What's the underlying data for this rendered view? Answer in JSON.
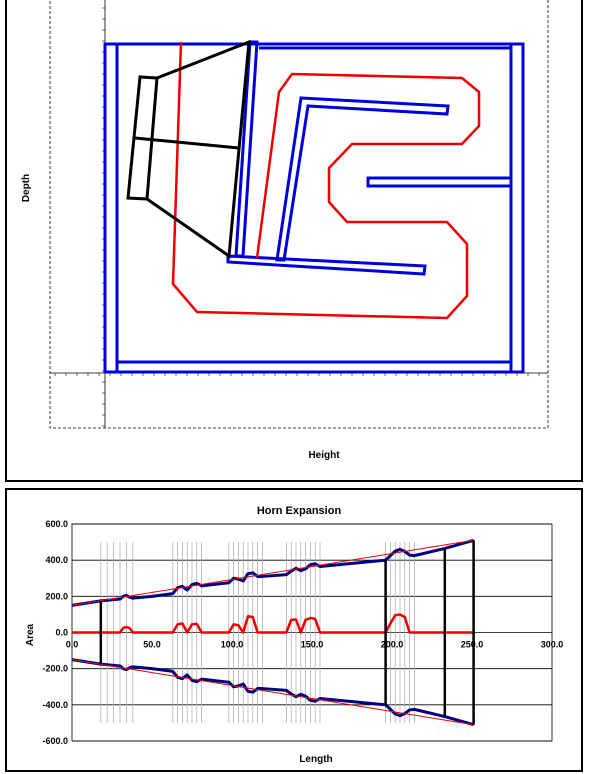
{
  "chart_data": [
    {
      "type": "line",
      "title": "",
      "xlabel": "Height",
      "ylabel": "Depth",
      "series": [
        {
          "color": "#0000cc",
          "values": []
        },
        {
          "color": "#ee0000",
          "values": []
        },
        {
          "color": "#000000",
          "values": []
        }
      ],
      "grid": false
    },
    {
      "type": "line",
      "title": "Horn Expansion",
      "xlabel": "Length",
      "ylabel": "Area",
      "xlim": [
        0,
        300
      ],
      "ylim": [
        -600,
        600
      ],
      "xticks": [
        "0.0",
        "50.0",
        "100.0",
        "150.0",
        "200.0",
        "250.0",
        "300.0"
      ],
      "yticks": [
        "600.0",
        "400.0",
        "200.0",
        "0.0",
        "-200.0",
        "-400.0",
        "-600.0"
      ],
      "grid": true,
      "series": [
        {
          "color": "#000080",
          "x": [
            0,
            18,
            30,
            32,
            34,
            36,
            38,
            50,
            63,
            66,
            69,
            72,
            75,
            78,
            81,
            98,
            101,
            104,
            107,
            110,
            113,
            116,
            119,
            134,
            137,
            140,
            143,
            146,
            149,
            152,
            155,
            196,
            199,
            202,
            205,
            208,
            211,
            214,
            233,
            251
          ],
          "y": [
            150,
            175,
            185,
            200,
            205,
            195,
            190,
            200,
            215,
            248,
            255,
            235,
            265,
            272,
            258,
            275,
            300,
            295,
            285,
            325,
            330,
            310,
            310,
            320,
            340,
            355,
            342,
            352,
            375,
            380,
            365,
            400,
            425,
            450,
            460,
            448,
            428,
            425,
            465,
            510
          ]
        },
        {
          "color": "#ee0000",
          "x": [
            0,
            251
          ],
          "y": [
            150,
            510
          ]
        },
        {
          "color": "#ee0000",
          "x": [
            0,
            30,
            32,
            34,
            36,
            38,
            63,
            66,
            69,
            72,
            75,
            78,
            81,
            98,
            101,
            104,
            107,
            110,
            113,
            116,
            119,
            134,
            137,
            140,
            143,
            146,
            149,
            152,
            155,
            196,
            199,
            202,
            205,
            208,
            211,
            251
          ],
          "y": [
            0,
            0,
            25,
            30,
            25,
            0,
            0,
            45,
            50,
            0,
            45,
            48,
            0,
            0,
            45,
            40,
            0,
            90,
            85,
            0,
            0,
            0,
            70,
            72,
            0,
            70,
            80,
            75,
            0,
            0,
            50,
            95,
            100,
            85,
            0,
            0
          ]
        },
        {
          "color": "#000080",
          "x": [
            0,
            18,
            30,
            32,
            34,
            36,
            38,
            50,
            63,
            66,
            69,
            72,
            75,
            78,
            81,
            98,
            101,
            104,
            107,
            110,
            113,
            116,
            119,
            134,
            137,
            140,
            143,
            146,
            149,
            152,
            155,
            196,
            199,
            202,
            205,
            208,
            211,
            214,
            233,
            251
          ],
          "y": [
            -150,
            -175,
            -185,
            -200,
            -205,
            -195,
            -190,
            -200,
            -215,
            -248,
            -255,
            -235,
            -265,
            -272,
            -258,
            -275,
            -300,
            -295,
            -285,
            -325,
            -330,
            -310,
            -310,
            -320,
            -340,
            -355,
            -342,
            -352,
            -375,
            -380,
            -365,
            -400,
            -425,
            -450,
            -460,
            -448,
            -428,
            -425,
            -465,
            -510
          ]
        },
        {
          "color": "#ee0000",
          "x": [
            0,
            251
          ],
          "y": [
            -150,
            -510
          ]
        }
      ]
    }
  ]
}
